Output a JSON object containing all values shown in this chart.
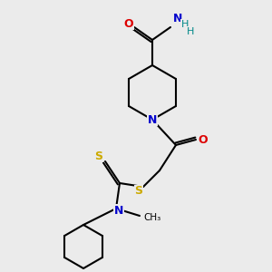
{
  "bg_color": "#ebebeb",
  "atom_colors": {
    "C": "#000000",
    "N": "#0000cc",
    "O": "#dd0000",
    "S": "#ccaa00",
    "H": "#008888"
  },
  "figsize": [
    3.0,
    3.0
  ],
  "dpi": 100,
  "bond_lw": 1.5,
  "font_size": 9
}
